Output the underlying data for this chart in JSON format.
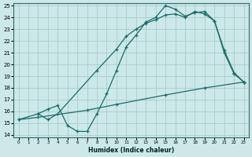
{
  "xlabel": "Humidex (Indice chaleur)",
  "bg_color": "#cce8e8",
  "grid_color": "#aacccc",
  "line_color": "#1a6b6b",
  "xlim": [
    -0.5,
    23.5
  ],
  "ylim": [
    13.8,
    25.2
  ],
  "xticks": [
    0,
    1,
    2,
    3,
    4,
    5,
    6,
    7,
    8,
    9,
    10,
    11,
    12,
    13,
    14,
    15,
    16,
    17,
    18,
    19,
    20,
    21,
    22,
    23
  ],
  "yticks": [
    14,
    15,
    16,
    17,
    18,
    19,
    20,
    21,
    22,
    23,
    24,
    25
  ],
  "line1_x": [
    0,
    2,
    7,
    10,
    15,
    19,
    23
  ],
  "line1_y": [
    15.3,
    15.5,
    16.1,
    16.6,
    17.4,
    18.0,
    18.5
  ],
  "line2_x": [
    0,
    2,
    3,
    4,
    5,
    6,
    7,
    8,
    9,
    10,
    11,
    12,
    13,
    14,
    15,
    16,
    17,
    18,
    19,
    20,
    21,
    22,
    23
  ],
  "line2_y": [
    15.3,
    15.8,
    16.2,
    16.5,
    14.8,
    14.3,
    14.3,
    15.8,
    17.5,
    19.5,
    21.5,
    22.5,
    23.6,
    24.0,
    25.0,
    24.7,
    24.1,
    24.4,
    24.5,
    23.7,
    21.2,
    19.3,
    18.5
  ],
  "line3_x": [
    2,
    3,
    4,
    8,
    10,
    11,
    12,
    13,
    14,
    15,
    16,
    17,
    18,
    19,
    20,
    21,
    22,
    23
  ],
  "line3_y": [
    15.8,
    15.3,
    15.8,
    19.5,
    21.3,
    22.4,
    23.0,
    23.5,
    23.8,
    24.2,
    24.3,
    24.0,
    24.5,
    24.3,
    23.7,
    21.0,
    19.2,
    18.5
  ]
}
